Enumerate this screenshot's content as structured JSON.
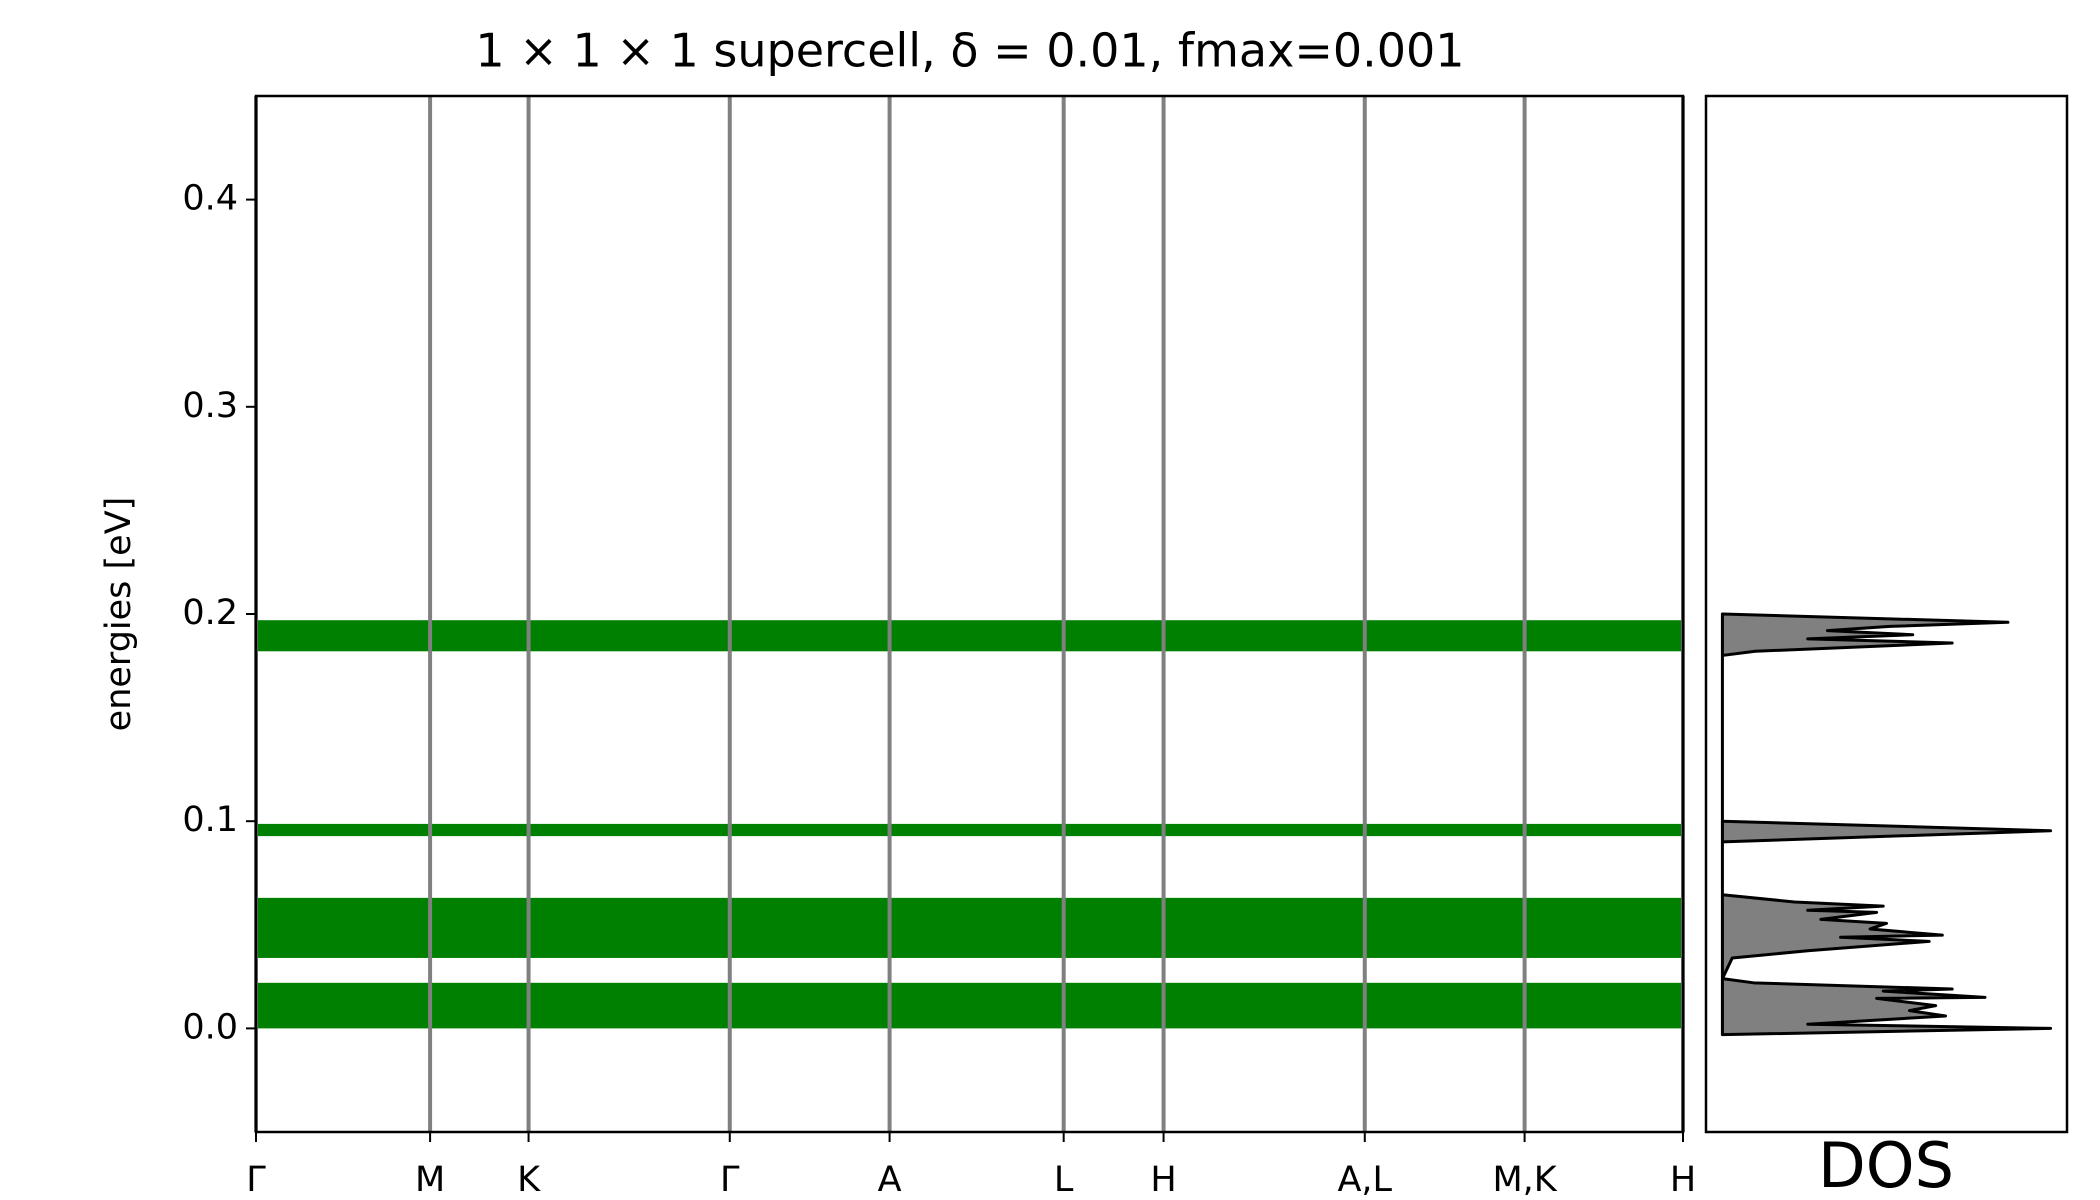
{
  "chart_data": [
    {
      "type": "band",
      "title": "1 × 1 × 1 supercell, δ = 0.01, fmax=0.001",
      "ylabel": "energies [eV]",
      "ylim": [
        -0.05,
        0.45
      ],
      "yticks": [
        {
          "value": 0,
          "label": "0.0"
        },
        0.1,
        0.2,
        0.3,
        0.4
      ],
      "xlim": [
        0,
        1
      ],
      "xticks": [
        {
          "value": 0,
          "label": "Γ"
        },
        {
          "value": 0.122,
          "label": "M"
        },
        {
          "value": 0.191,
          "label": "K"
        },
        {
          "value": 0.332,
          "label": "Γ"
        },
        {
          "value": 0.444,
          "label": "A"
        },
        {
          "value": 0.566,
          "label": "L"
        },
        {
          "value": 0.636,
          "label": "H"
        },
        {
          "value": 0.777,
          "label": "A,L"
        },
        {
          "value": 0.889,
          "label": "M,K"
        },
        {
          "value": 1,
          "label": "H"
        }
      ],
      "band_color": "#008000",
      "grid_color": "#808080",
      "bands_low": [
        0.0,
        0.034,
        0.0928,
        0.182
      ],
      "bands_high": [
        0.022,
        0.063,
        0.0987,
        0.197
      ]
    },
    {
      "type": "dos",
      "xlabel": "DOS",
      "ylim": [
        -0.05,
        0.45
      ],
      "xlim": [
        -0.05,
        1.05
      ],
      "color": "#808080",
      "energies": [
        -0.003,
        0.0,
        0.002,
        0.006,
        0.0086,
        0.011,
        0.0145,
        0.015,
        0.018,
        0.019,
        0.022,
        0.024,
        0.034,
        0.0375,
        0.042,
        0.044,
        0.045,
        0.048,
        0.0507,
        0.0526,
        0.056,
        0.057,
        0.059,
        0.061,
        0.0645,
        0.09,
        0.0954,
        0.1,
        0.18,
        0.182,
        0.186,
        0.188,
        0.19,
        0.192,
        0.194,
        0.196,
        0.2
      ],
      "dos": [
        0,
        1.0,
        0.26,
        0.68,
        0.57,
        0.65,
        0.47,
        0.8,
        0.49,
        0.7,
        0.095,
        0,
        0.03,
        0.26,
        0.63,
        0.36,
        0.67,
        0.45,
        0.5,
        0.3,
        0.47,
        0.26,
        0.49,
        0.22,
        0,
        0,
        1.0,
        0,
        0,
        0.1,
        0.7,
        0.26,
        0.58,
        0.32,
        0.51,
        0.87,
        0
      ]
    }
  ]
}
